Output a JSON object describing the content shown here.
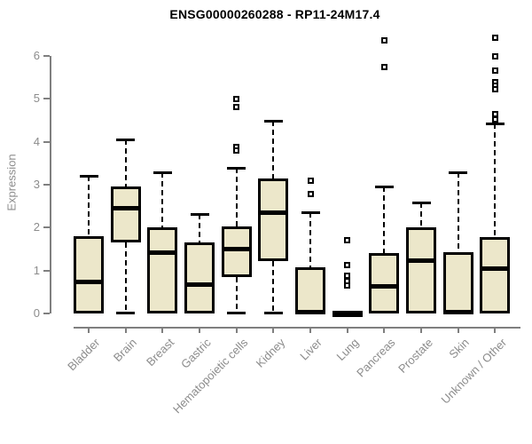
{
  "title": "ENSG00000260288 - RP11-24M17.4",
  "y_axis": {
    "label": "Expression",
    "ticks": [
      0,
      1,
      2,
      3,
      4,
      5,
      6
    ]
  },
  "colors": {
    "box_fill": "#ECE7CA",
    "box_border": "#000000",
    "median": "#000000",
    "whisker": "#000000",
    "axis": "#7f7f7f",
    "tick_label": "#8c8c8c",
    "title": "#000000",
    "outlier_fill": "#ffffff"
  },
  "chart_data": {
    "type": "box",
    "title": "ENSG00000260288 - RP11-24M17.4",
    "xlabel": "",
    "ylabel": "Expression",
    "ylim": [
      0,
      6.5
    ],
    "grid": false,
    "legend": "none",
    "categories": [
      "Bladder",
      "Brain",
      "Breast",
      "Gastric",
      "Hematopoietic cells",
      "Kidney",
      "Liver",
      "Lung",
      "Pancreas",
      "Prostate",
      "Skin",
      "Unknown / Other"
    ],
    "series": [
      {
        "name": "Bladder",
        "whisker_low": 0,
        "q1": 0,
        "median": 0.73,
        "q3": 1.8,
        "whisker_high": 3.2,
        "outliers": []
      },
      {
        "name": "Brain",
        "whisker_low": 0,
        "q1": 1.65,
        "median": 2.45,
        "q3": 2.95,
        "whisker_high": 4.05,
        "outliers": []
      },
      {
        "name": "Breast",
        "whisker_low": 0,
        "q1": 0,
        "median": 1.42,
        "q3": 2.0,
        "whisker_high": 3.3,
        "outliers": []
      },
      {
        "name": "Gastric",
        "whisker_low": 0,
        "q1": 0,
        "median": 0.68,
        "q3": 1.65,
        "whisker_high": 2.32,
        "outliers": []
      },
      {
        "name": "Hematopoietic cells",
        "whisker_low": 0,
        "q1": 0.85,
        "median": 1.5,
        "q3": 2.02,
        "whisker_high": 3.4,
        "outliers": [
          5.0,
          4.82,
          3.88,
          3.8
        ]
      },
      {
        "name": "Kidney",
        "whisker_low": 0,
        "q1": 1.22,
        "median": 2.35,
        "q3": 3.15,
        "whisker_high": 4.5,
        "outliers": []
      },
      {
        "name": "Liver",
        "whisker_low": 0,
        "q1": 0,
        "median": 0.03,
        "q3": 1.08,
        "whisker_high": 2.35,
        "outliers": [
          3.1,
          2.78
        ]
      },
      {
        "name": "Lung",
        "whisker_low": 0,
        "q1": 0,
        "median": 0.02,
        "q3": 0.04,
        "whisker_high": 0.04,
        "outliers": [
          1.7,
          1.13,
          0.87,
          0.76,
          0.65
        ]
      },
      {
        "name": "Pancreas",
        "whisker_low": 0,
        "q1": 0,
        "median": 0.63,
        "q3": 1.4,
        "whisker_high": 2.95,
        "outliers": [
          6.37,
          5.75
        ]
      },
      {
        "name": "Prostate",
        "whisker_low": 0,
        "q1": 0,
        "median": 1.23,
        "q3": 2.0,
        "whisker_high": 2.58,
        "outliers": []
      },
      {
        "name": "Skin",
        "whisker_low": 0,
        "q1": 0,
        "median": 0.04,
        "q3": 1.43,
        "whisker_high": 3.28,
        "outliers": []
      },
      {
        "name": "Unknown / Other",
        "whisker_low": 0,
        "q1": 0,
        "median": 1.05,
        "q3": 1.78,
        "whisker_high": 4.43,
        "outliers": [
          6.43,
          6.0,
          5.66,
          5.4,
          5.3,
          5.22,
          4.65,
          4.52
        ]
      }
    ]
  }
}
